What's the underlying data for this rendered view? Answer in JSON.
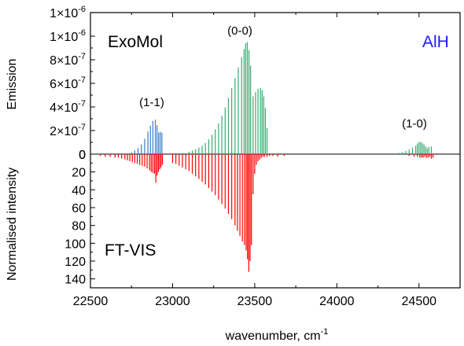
{
  "chart_data": {
    "type": "stick-spectrum",
    "upper_panel": {
      "ylabel": "Emission",
      "ylim": [
        0,
        1.2e-06
      ],
      "ytick_values": [
        0,
        2e-07,
        4e-07,
        6e-07,
        8e-07,
        1e-06,
        1.2e-06
      ],
      "yticks_text": [
        "0",
        "2×10",
        "4×10",
        "6×10",
        "8×10",
        "1×10",
        "1×10"
      ],
      "yticks_exp": [
        "",
        "-7",
        "-7",
        "-7",
        "-7",
        "-6",
        "-6"
      ],
      "label_source": "ExoMol",
      "label_molecule": "AlH",
      "band_labels": [
        {
          "text": "(1-1)",
          "x": 22880,
          "y": 4.6e-07
        },
        {
          "text": "(0-0)",
          "x": 23440,
          "y": 1.12e-06
        },
        {
          "text": "(1-0)",
          "x": 24480,
          "y": 2.3e-07
        }
      ]
    },
    "lower_panel": {
      "ylabel": "Normalised intensity",
      "ylim": [
        0,
        150
      ],
      "inverted": true,
      "yticks": [
        "0",
        "20",
        "40",
        "60",
        "80",
        "100",
        "120",
        "140"
      ],
      "ytick_values": [
        0,
        20,
        40,
        60,
        80,
        100,
        120,
        140
      ],
      "label_source": "FT-VIS"
    },
    "x": {
      "xlabel_text": "wavenumber, cm",
      "xlabel_sup": "-1",
      "xlim": [
        22500,
        24750
      ],
      "xticks": [
        "22500",
        "23000",
        "23500",
        "24000",
        "24500"
      ],
      "xtick_values": [
        22500,
        23000,
        23500,
        24000,
        24500
      ]
    },
    "series": [
      {
        "band": "(1-1)",
        "color": "#3b7ec9",
        "panel": "upper",
        "x": [
          22750,
          22770,
          22790,
          22810,
          22830,
          22850,
          22865,
          22880,
          22895,
          22905,
          22915,
          22925,
          22935
        ],
        "values": [
          1.6e-08,
          3.1e-08,
          5.2e-08,
          8.3e-08,
          1.31e-07,
          1.92e-07,
          2.42e-07,
          2.82e-07,
          2.93e-07,
          2.45e-07,
          1.83e-07,
          1.9e-07,
          1.82e-07
        ]
      },
      {
        "band": "(0-0)",
        "color": "#3aaa72",
        "panel": "upper",
        "x": [
          23100,
          23120,
          23140,
          23160,
          23180,
          23200,
          23220,
          23240,
          23260,
          23280,
          23300,
          23320,
          23340,
          23360,
          23380,
          23400,
          23420,
          23435,
          23445,
          23455,
          23465,
          23475,
          23490,
          23505,
          23520,
          23535,
          23545,
          23555,
          23565,
          23575
        ],
        "values": [
          2e-08,
          3e-08,
          4.2e-08,
          5.5e-08,
          7e-08,
          9.5e-08,
          1.25e-07,
          1.65e-07,
          2.1e-07,
          2.6e-07,
          3.25e-07,
          3.95e-07,
          4.75e-07,
          5.6e-07,
          6.45e-07,
          7.35e-07,
          8.2e-07,
          8.9e-07,
          9.4e-07,
          9.5e-07,
          8.8e-07,
          7.5e-07,
          4.9e-07,
          5.25e-07,
          5.55e-07,
          5.6e-07,
          5.4e-07,
          4.9e-07,
          3.9e-07,
          2.2e-07
        ]
      },
      {
        "band": "(1-0)",
        "color": "#3aaa72",
        "panel": "upper",
        "x": [
          24380,
          24400,
          24420,
          24440,
          24460,
          24480,
          24490,
          24500,
          24510,
          24520,
          24530,
          24540,
          24550,
          24560,
          24575
        ],
        "values": [
          1e-08,
          1.8e-08,
          2.8e-08,
          4e-08,
          5.5e-08,
          7e-08,
          9e-08,
          1.05e-07,
          1.03e-07,
          9.5e-08,
          8.3e-08,
          6.6e-08,
          5.2e-08,
          6.2e-08,
          6.6e-08
        ]
      },
      {
        "band": "FT-VIS",
        "color": "#ff0000",
        "panel": "lower",
        "x": [
          22560,
          22590,
          22620,
          22650,
          22670,
          22690,
          22710,
          22725,
          22740,
          22755,
          22770,
          22785,
          22800,
          22815,
          22830,
          22845,
          22860,
          22870,
          22880,
          22890,
          22898,
          22906,
          22914,
          22922,
          22930,
          22938,
          23000,
          23020,
          23040,
          23060,
          23080,
          23100,
          23120,
          23140,
          23160,
          23180,
          23200,
          23220,
          23240,
          23260,
          23280,
          23300,
          23320,
          23340,
          23360,
          23380,
          23395,
          23410,
          23425,
          23438,
          23448,
          23456,
          23464,
          23472,
          23480,
          23490,
          23500,
          23510,
          23520,
          23530,
          23540,
          23550,
          23560,
          23575,
          23590,
          23610,
          23640,
          23680,
          24440,
          24470,
          24490,
          24505,
          24515,
          24525,
          24535,
          24545,
          24555,
          24565,
          24575,
          24585
        ],
        "values": [
          2,
          3,
          3,
          4,
          4,
          5,
          6,
          7,
          8,
          9,
          10,
          11,
          12,
          13,
          14,
          16,
          18,
          20,
          21,
          22,
          32,
          24,
          20,
          17,
          15,
          12,
          10,
          11,
          13,
          15,
          17,
          19,
          22,
          25,
          28,
          31,
          34,
          38,
          42,
          46,
          51,
          56,
          61,
          67,
          73,
          80,
          86,
          92,
          98,
          102,
          108,
          118,
          132,
          120,
          102,
          45,
          22,
          12,
          8,
          6,
          4,
          3,
          3,
          3,
          2,
          2,
          3,
          2,
          2,
          3,
          3,
          4,
          4,
          4,
          3,
          4,
          4,
          3,
          5,
          4
        ]
      }
    ]
  }
}
